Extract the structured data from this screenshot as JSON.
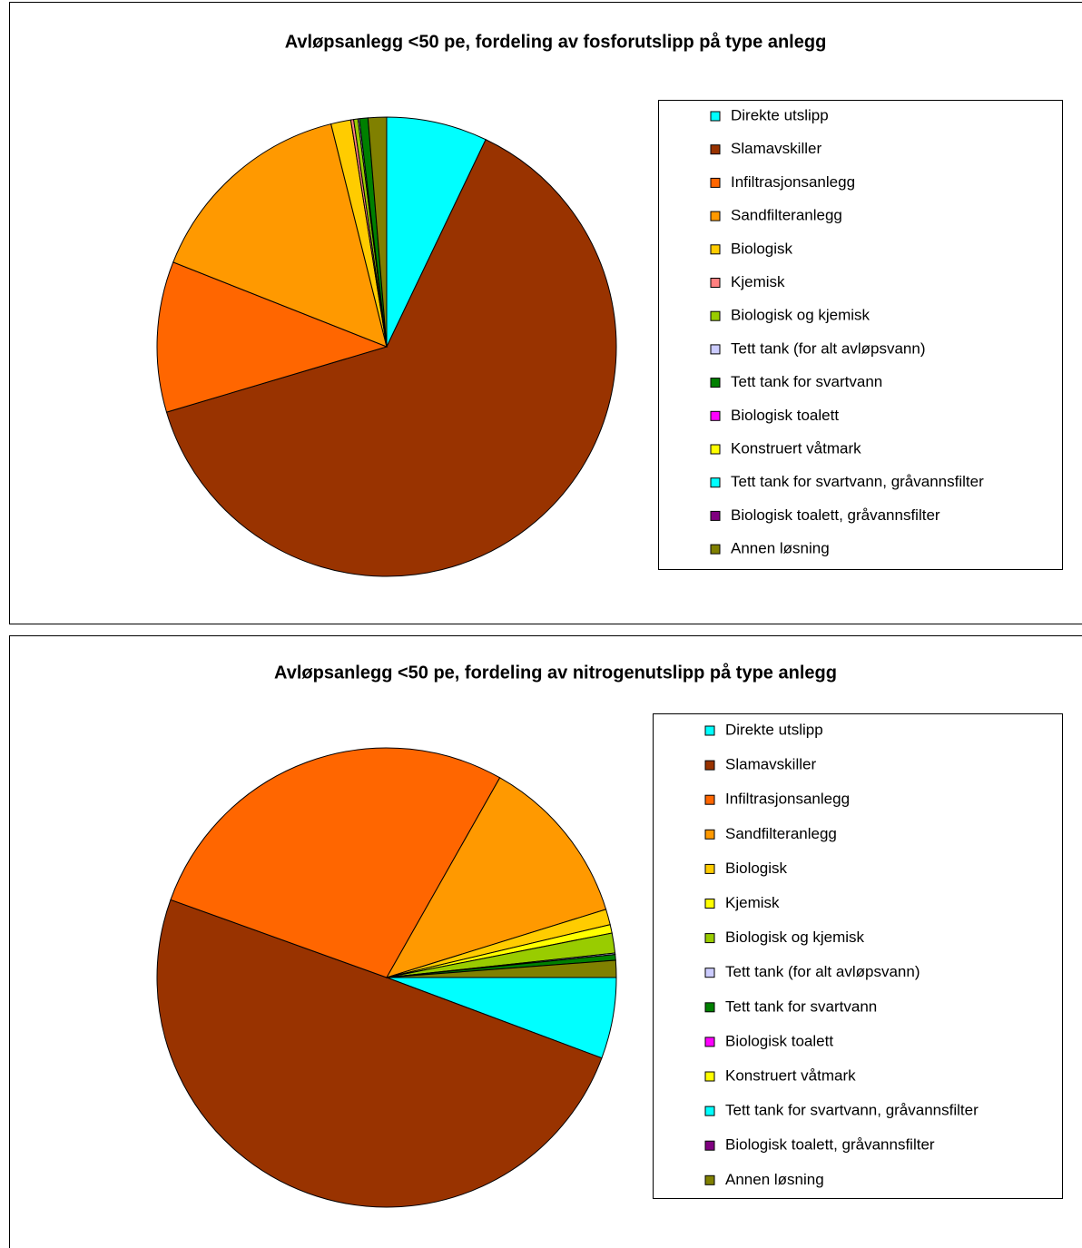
{
  "chart_data": [
    {
      "type": "pie",
      "title": "Avløpsanlegg <50 pe, fordeling av fosforutslipp på type anlegg",
      "categories": [
        "Direkte utslipp",
        "Slamavskiller",
        "Infiltrasjonsanlegg",
        "Sandfilteranlegg",
        "Biologisk",
        "Kjemisk",
        "Biologisk og kjemisk",
        "Tett tank (for alt avløpsvann)",
        "Tett tank for svartvann",
        "Biologisk toalett",
        "Konstruert våtmark",
        "Tett tank for svartvann, gråvannsfilter",
        "Biologisk toalett, gråvannsfilter",
        "Annen løsning"
      ],
      "values": [
        7.1,
        63.3,
        10.6,
        15.1,
        1.4,
        0.2,
        0.3,
        0.1,
        0.6,
        0,
        0,
        0,
        0,
        1.3
      ],
      "colors": [
        "#00ffff",
        "#993300",
        "#ff6600",
        "#ff9900",
        "#ffcc00",
        "#ff8080",
        "#99cc00",
        "#ccccff",
        "#008000",
        "#ff00ff",
        "#ffff00",
        "#00ffff",
        "#800080",
        "#808000"
      ],
      "start_angle": 0,
      "legend": "right"
    },
    {
      "type": "pie",
      "title": "Avløpsanlegg <50 pe, fordeling av nitrogenutslipp på type anlegg",
      "categories": [
        "Direkte utslipp",
        "Slamavskiller",
        "Infiltrasjonsanlegg",
        "Sandfilteranlegg",
        "Biologisk",
        "Kjemisk",
        "Biologisk og kjemisk",
        "Tett tank (for alt avløpsvann)",
        "Tett tank for svartvann",
        "Biologisk toalett",
        "Konstruert våtmark",
        "Tett tank for svartvann, gråvannsfilter",
        "Biologisk toalett, gråvannsfilter",
        "Annen løsning"
      ],
      "values": [
        5.7,
        49.8,
        27.7,
        12.0,
        1.1,
        0.6,
        1.4,
        0.1,
        0.4,
        0,
        0,
        0,
        0,
        1.2
      ],
      "colors": [
        "#00ffff",
        "#993300",
        "#ff6600",
        "#ff9900",
        "#ffcc00",
        "#ffff00",
        "#99cc00",
        "#ccccff",
        "#008000",
        "#ff00ff",
        "#ffff00",
        "#00ffff",
        "#800080",
        "#808000"
      ],
      "start_angle": 90,
      "legend": "right"
    }
  ]
}
